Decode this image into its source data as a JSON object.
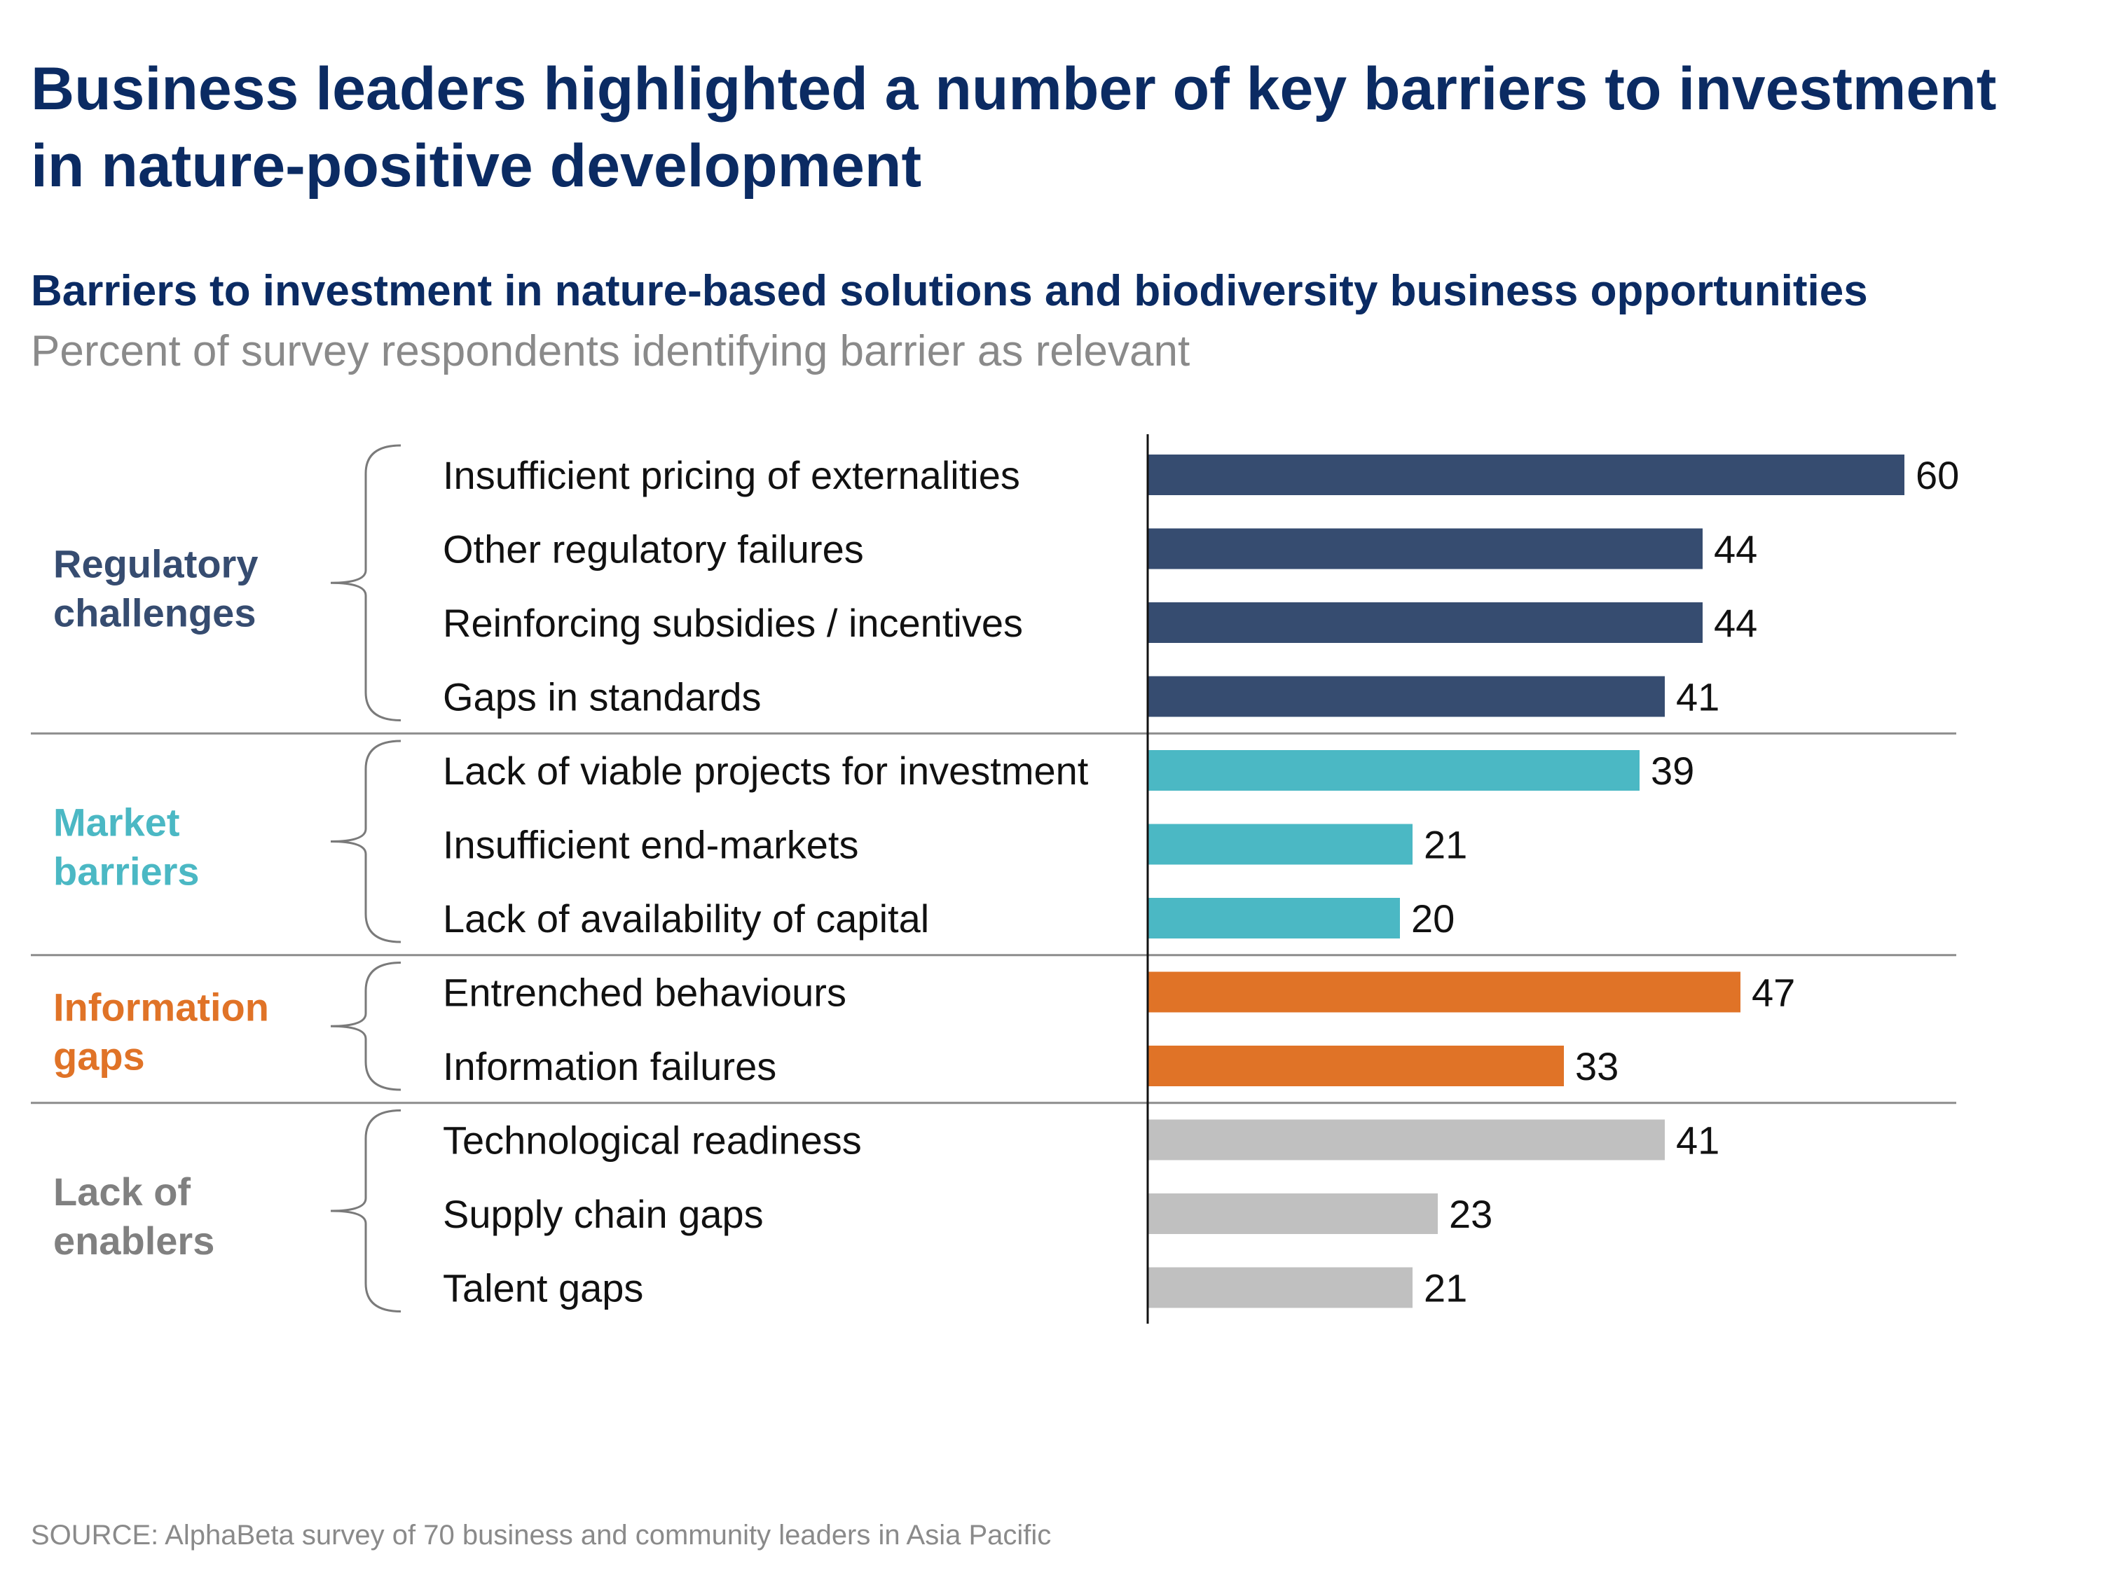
{
  "page": {
    "title": "Business leaders highlighted a number of key barriers to investment in nature-positive development",
    "subtitle": "Barriers to investment in nature-based solutions and biodiversity business opportunities",
    "unit_label": "Percent of survey respondents identifying barrier as relevant",
    "source": "SOURCE: AlphaBeta survey of 70 business and community leaders in Asia Pacific"
  },
  "chart_data": {
    "type": "bar",
    "orientation": "horizontal",
    "title": "Barriers to investment in nature-based solutions and biodiversity business opportunities",
    "xlabel": "",
    "ylabel": "",
    "xlim": [
      0,
      60
    ],
    "grid": false,
    "groups": [
      {
        "name": "Regulatory challenges",
        "color": "#364c70",
        "categories": [
          "Insufficient pricing of externalities",
          "Other regulatory failures",
          "Reinforcing subsidies / incentives",
          "Gaps in standards"
        ],
        "values": [
          60,
          44,
          44,
          41
        ]
      },
      {
        "name": "Market barriers",
        "color": "#4bb8c4",
        "categories": [
          "Lack of viable projects for investment",
          "Insufficient end-markets",
          "Lack of availability of capital"
        ],
        "values": [
          39,
          21,
          20
        ]
      },
      {
        "name": "Information gaps",
        "color": "#e07327",
        "categories": [
          "Entrenched behaviours",
          "Information failures"
        ],
        "values": [
          47,
          33
        ]
      },
      {
        "name": "Lack of enablers",
        "color": "#c0c0c0",
        "label_color": "#808080",
        "categories": [
          "Technological readiness",
          "Supply chain gaps",
          "Talent gaps"
        ],
        "values": [
          41,
          23,
          21
        ]
      }
    ]
  }
}
